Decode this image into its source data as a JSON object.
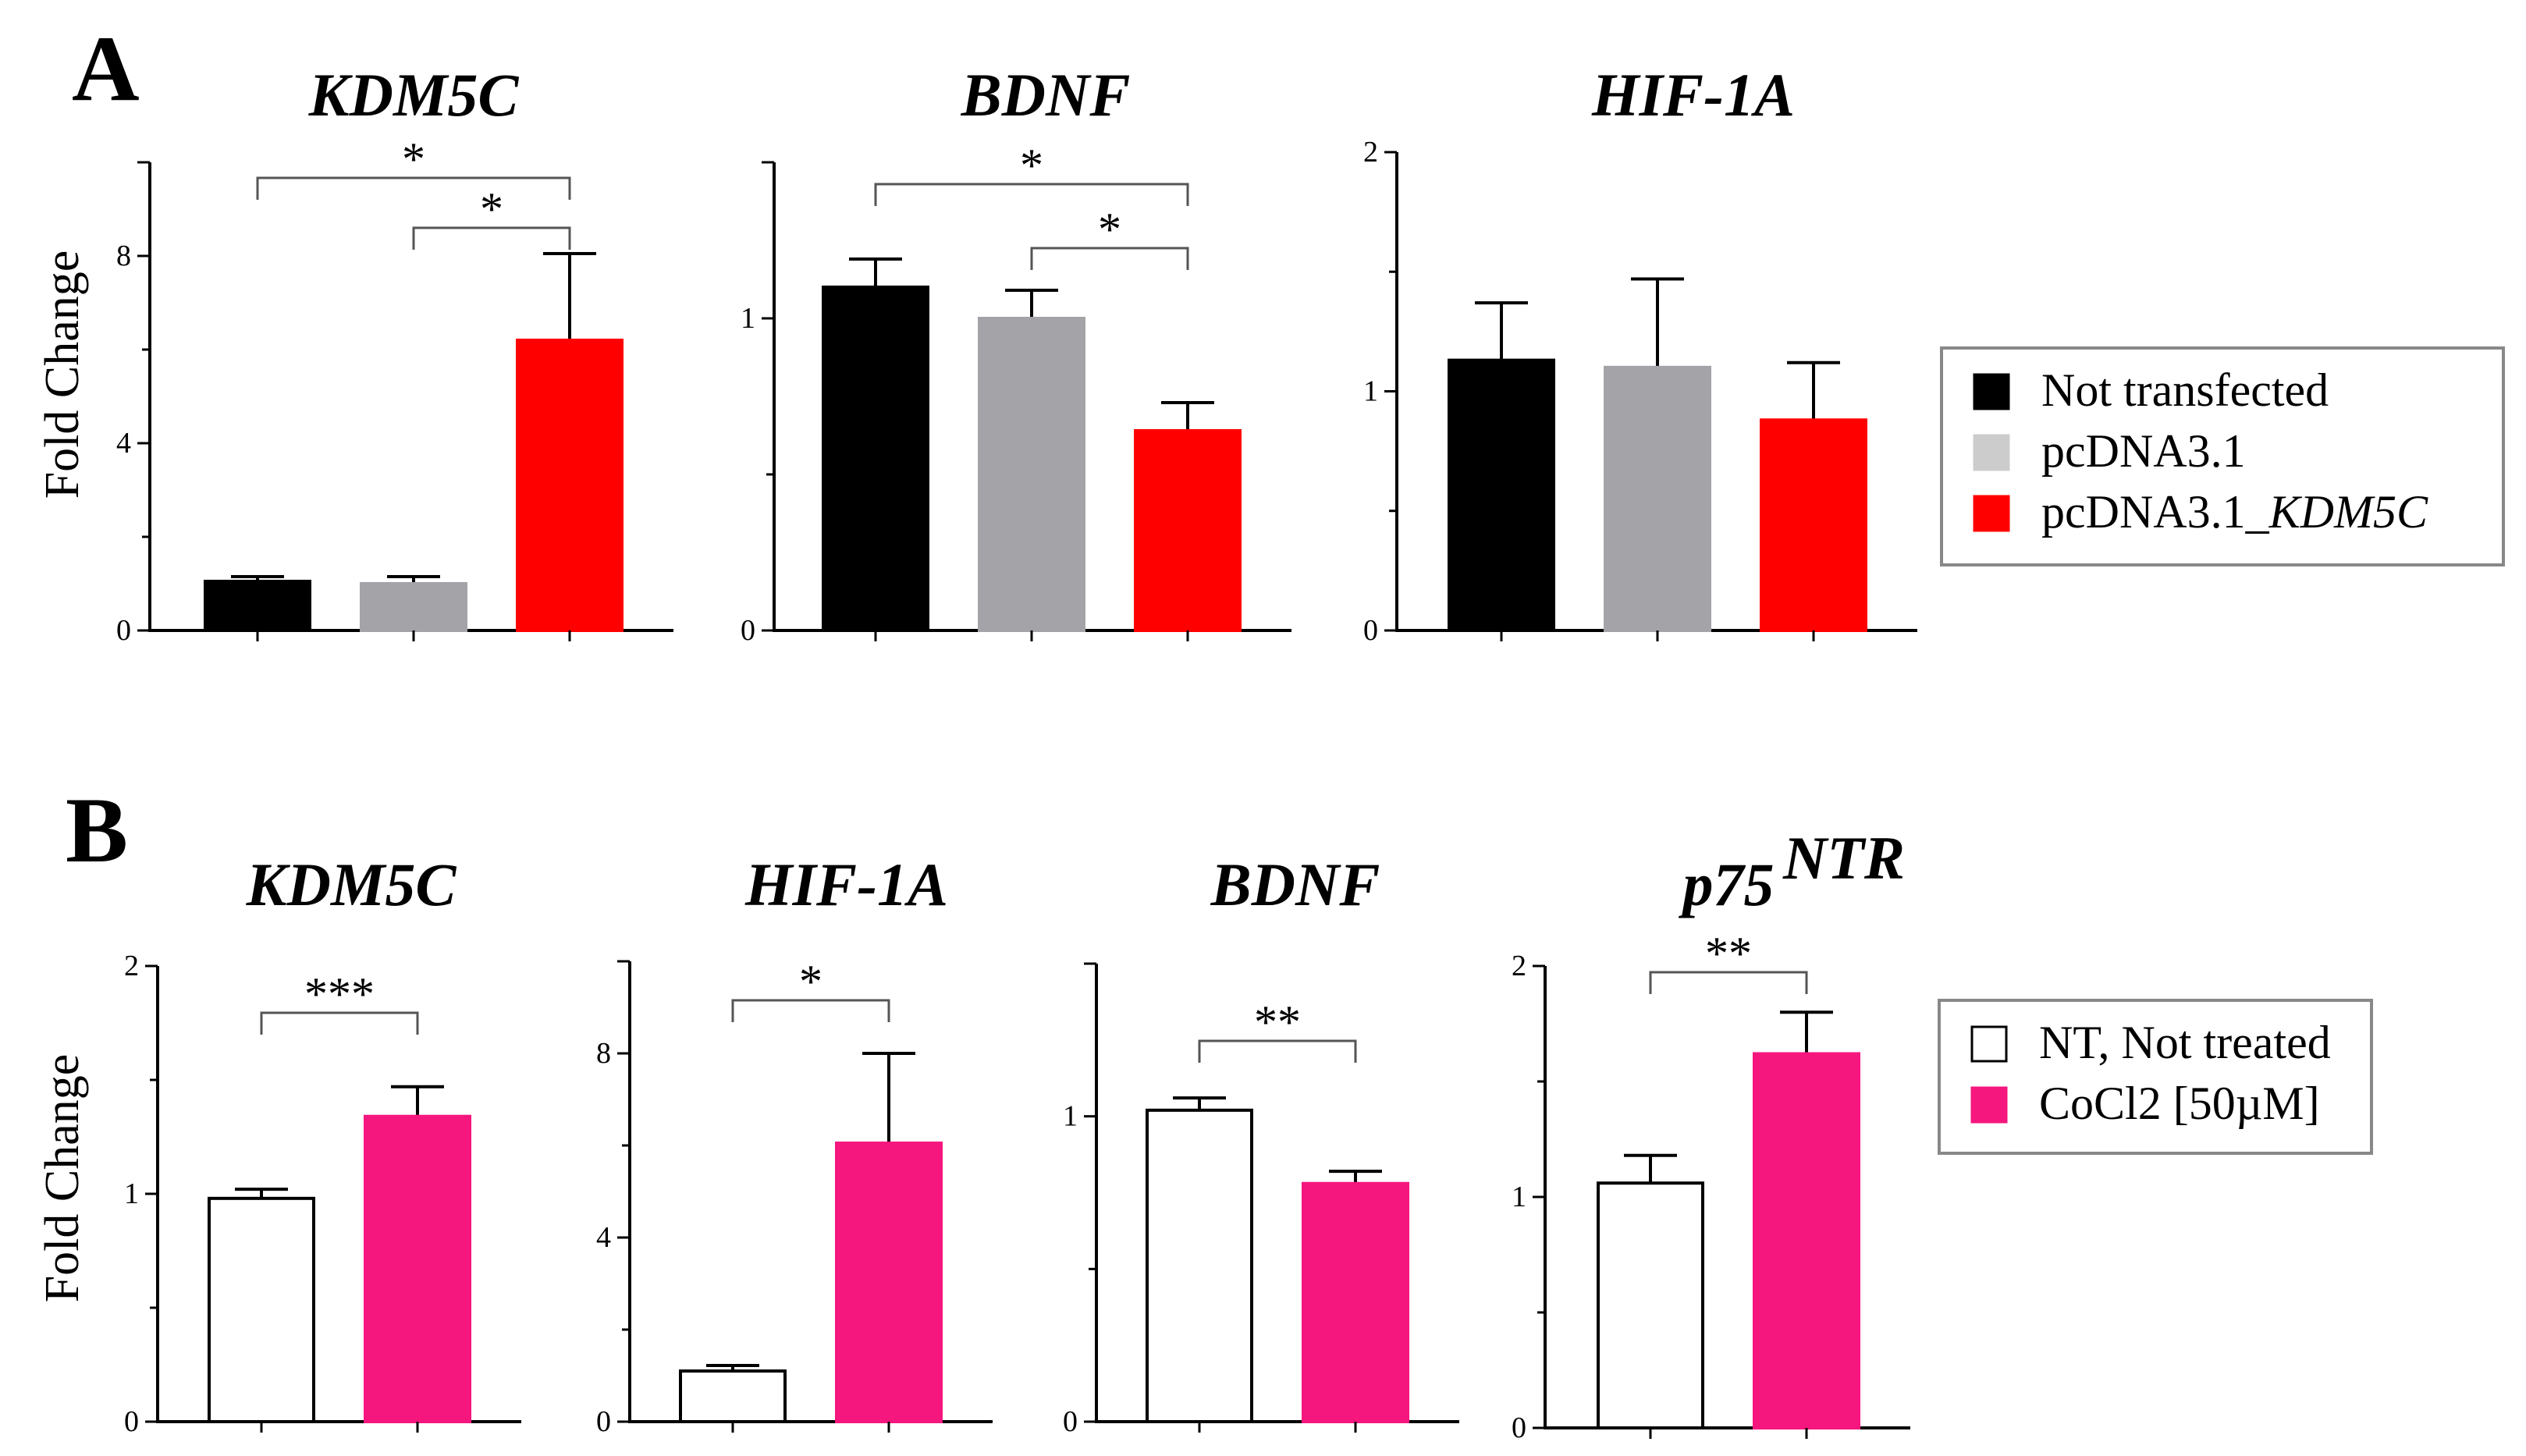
{
  "panels": {
    "A": {
      "letter": "A",
      "ylabel": "Fold Change"
    },
    "B": {
      "letter": "B",
      "ylabel": "Fold Change"
    }
  },
  "legendA": {
    "items": [
      {
        "label": "Not transfected",
        "italic_part": "",
        "color": "#000000"
      },
      {
        "label": "pcDNA3.1",
        "italic_part": "",
        "color": "#cccccc"
      },
      {
        "label": "pcDNA3.1_",
        "italic_part": "KDM5C",
        "color": "#ff0000"
      }
    ]
  },
  "legendB": {
    "items": [
      {
        "label": "NT, Not treated",
        "italic_part": "",
        "color": "#ffffff"
      },
      {
        "label": "CoCl2 [50µM]",
        "italic_part": "",
        "color": "#f5167e"
      }
    ]
  },
  "chart_data": [
    {
      "id": "A1",
      "panel": "A",
      "type": "bar",
      "title": "KDM5C",
      "title_sup": "",
      "ylabel": "Fold Change",
      "categories": [
        "Not transfected",
        "pcDNA3.1",
        "pcDNA3.1_KDM5C"
      ],
      "values": [
        1.05,
        1.0,
        6.2
      ],
      "errors": [
        0.1,
        0.15,
        1.85
      ],
      "colors": [
        "#000000",
        "#a4a4a8",
        "#ff0000"
      ],
      "ylim": [
        0,
        10
      ],
      "yticks": [
        0,
        4,
        8
      ],
      "ytick_labels": [
        "0",
        "4",
        "8"
      ],
      "minor_ticks": [
        2,
        6,
        10
      ],
      "significance": [
        {
          "from": 0,
          "to": 2,
          "label": "*"
        },
        {
          "from": 1,
          "to": 2,
          "label": "*"
        }
      ]
    },
    {
      "id": "A2",
      "panel": "A",
      "type": "bar",
      "title": "BDNF",
      "title_sup": "",
      "ylabel": "",
      "categories": [
        "Not transfected",
        "pcDNA3.1",
        "pcDNA3.1_KDM5C"
      ],
      "values": [
        1.1,
        1.0,
        0.64
      ],
      "errors": [
        0.09,
        0.09,
        0.09
      ],
      "colors": [
        "#000000",
        "#a4a4a8",
        "#ff0000"
      ],
      "ylim": [
        0,
        1.5
      ],
      "yticks": [
        0,
        1
      ],
      "ytick_labels": [
        "0",
        "1"
      ],
      "minor_ticks": [
        0.5,
        1.5
      ],
      "significance": [
        {
          "from": 0,
          "to": 2,
          "label": "*"
        },
        {
          "from": 1,
          "to": 2,
          "label": "*"
        }
      ]
    },
    {
      "id": "A3",
      "panel": "A",
      "type": "bar",
      "title": "HIF-1A",
      "title_sup": "",
      "ylabel": "",
      "categories": [
        "Not transfected",
        "pcDNA3.1",
        "pcDNA3.1_KDM5C"
      ],
      "values": [
        1.13,
        1.1,
        0.88
      ],
      "errors": [
        0.24,
        0.37,
        0.24
      ],
      "colors": [
        "#000000",
        "#a4a4a8",
        "#ff0000"
      ],
      "ylim": [
        0,
        2
      ],
      "yticks": [
        0,
        1,
        2
      ],
      "ytick_labels": [
        "0",
        "1",
        "2"
      ],
      "minor_ticks": [
        0.5,
        1.5
      ],
      "significance": []
    },
    {
      "id": "B1",
      "panel": "B",
      "type": "bar",
      "title": "KDM5C",
      "title_sup": "",
      "ylabel": "Fold Change",
      "categories": [
        "NT, Not treated",
        "CoCl2 [50µM]"
      ],
      "values": [
        0.98,
        1.34
      ],
      "errors": [
        0.04,
        0.13
      ],
      "colors": [
        "#ffffff",
        "#f5167e"
      ],
      "ylim": [
        0,
        2
      ],
      "yticks": [
        0,
        1,
        2
      ],
      "ytick_labels": [
        "0",
        "1",
        "2"
      ],
      "minor_ticks": [
        0.5,
        1.5
      ],
      "significance": [
        {
          "from": 0,
          "to": 1,
          "label": "***"
        }
      ]
    },
    {
      "id": "B2",
      "panel": "B",
      "type": "bar",
      "title": "HIF-1A",
      "title_sup": "",
      "ylabel": "",
      "categories": [
        "NT, Not treated",
        "CoCl2 [50µM]"
      ],
      "values": [
        1.1,
        6.05
      ],
      "errors": [
        0.12,
        1.95
      ],
      "colors": [
        "#ffffff",
        "#f5167e"
      ],
      "ylim": [
        0,
        10
      ],
      "yticks": [
        0,
        4,
        8
      ],
      "ytick_labels": [
        "0",
        "4",
        "8"
      ],
      "minor_ticks": [
        2,
        6,
        10
      ],
      "significance": [
        {
          "from": 0,
          "to": 1,
          "label": "*"
        }
      ]
    },
    {
      "id": "B3",
      "panel": "B",
      "type": "bar",
      "title": "BDNF",
      "title_sup": "",
      "ylabel": "",
      "categories": [
        "NT, Not treated",
        "CoCl2 [50µM]"
      ],
      "values": [
        1.02,
        0.78
      ],
      "errors": [
        0.04,
        0.04
      ],
      "colors": [
        "#ffffff",
        "#f5167e"
      ],
      "ylim": [
        0,
        1.5
      ],
      "yticks": [
        0,
        1
      ],
      "ytick_labels": [
        "0",
        "1"
      ],
      "minor_ticks": [
        0.5,
        1.5
      ],
      "significance": [
        {
          "from": 0,
          "to": 1,
          "label": "**"
        }
      ]
    },
    {
      "id": "B4",
      "panel": "B",
      "type": "bar",
      "title": "p75",
      "title_sup": "NTR",
      "ylabel": "",
      "categories": [
        "NT, Not treated",
        "CoCl2 [50µM]"
      ],
      "values": [
        1.06,
        1.62
      ],
      "errors": [
        0.12,
        0.18
      ],
      "colors": [
        "#ffffff",
        "#f5167e"
      ],
      "ylim": [
        0,
        2
      ],
      "yticks": [
        0,
        1,
        2
      ],
      "ytick_labels": [
        "0",
        "1",
        "2"
      ],
      "minor_ticks": [
        0.5,
        1.5
      ],
      "significance": [
        {
          "from": 0,
          "to": 1,
          "label": "**"
        }
      ]
    }
  ]
}
